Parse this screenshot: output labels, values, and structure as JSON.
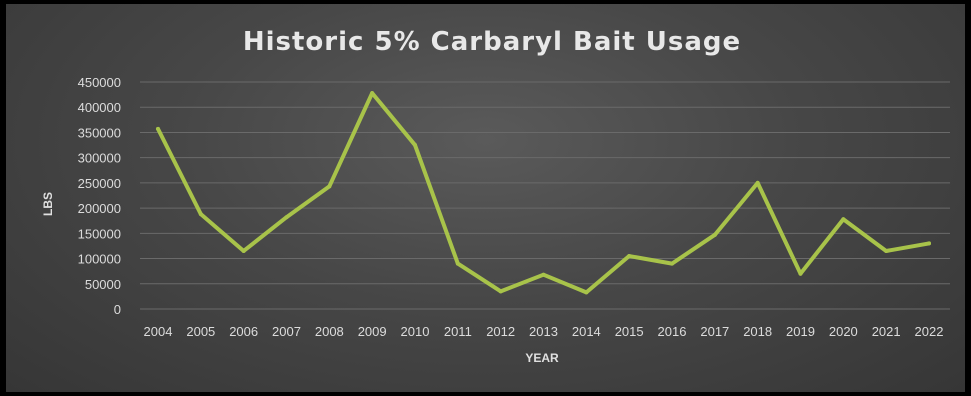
{
  "chart_data": {
    "type": "line",
    "title": "Historic 5% Carbaryl Bait Usage",
    "xlabel": "YEAR",
    "ylabel": "LBS",
    "categories": [
      "2004",
      "2005",
      "2006",
      "2007",
      "2008",
      "2009",
      "2010",
      "2011",
      "2012",
      "2013",
      "2014",
      "2015",
      "2016",
      "2017",
      "2018",
      "2019",
      "2020",
      "2021",
      "2022"
    ],
    "series": [
      {
        "values": [
          357000,
          188000,
          115000,
          182000,
          243000,
          428000,
          325000,
          90000,
          35000,
          68000,
          33000,
          105000,
          90000,
          147000,
          250000,
          70000,
          178000,
          115000,
          130000
        ],
        "color": "#a8c34a"
      }
    ],
    "yticks": [
      "0",
      "50000",
      "100000",
      "150000",
      "200000",
      "250000",
      "300000",
      "350000",
      "400000",
      "450000"
    ],
    "ylim": [
      0,
      450000
    ],
    "grid": true,
    "legend": "none"
  }
}
